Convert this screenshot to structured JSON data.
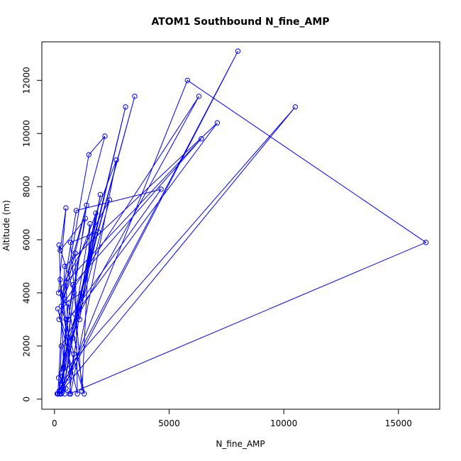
{
  "chart_data": {
    "type": "scatter",
    "title": "ATOM1 Southbound N_fine_AMP",
    "xlabel": "N_fine_AMP",
    "ylabel": "Altitude (m)",
    "xlim": [
      -550,
      16800
    ],
    "ylim": [
      -380,
      13450
    ],
    "xticks": [
      0,
      5000,
      10000,
      15000
    ],
    "yticks": [
      0,
      2000,
      4000,
      6000,
      8000,
      10000,
      12000
    ],
    "color": "#0000ff",
    "marker": "open-circle",
    "connected": true,
    "grid": false,
    "series": [
      {
        "x": [
          150,
          300,
          120,
          500,
          250,
          8000,
          200,
          600,
          5800,
          16200,
          650,
          1200,
          400,
          6300,
          300,
          220,
          10500,
          180,
          3500,
          900,
          7100,
          450,
          150,
          3100,
          300,
          800,
          6400,
          500,
          700,
          2700,
          400,
          1500,
          2200,
          350,
          950,
          4650,
          600,
          1350,
          250,
          500,
          180,
          2400,
          800,
          2000,
          1100,
          1800,
          400,
          1550,
          1200,
          700,
          1900,
          300,
          1400,
          200,
          900,
          1000,
          150,
          1300,
          600,
          300,
          850,
          200,
          400,
          500,
          250,
          700,
          850,
          300,
          450
        ],
        "y": [
          200,
          500,
          200,
          400,
          200,
          13100,
          300,
          800,
          12000,
          5900,
          200,
          4000,
          3600,
          11400,
          2000,
          200,
          11000,
          800,
          11400,
          3200,
          10400,
          5000,
          200,
          11000,
          1000,
          4300,
          9800,
          4400,
          200,
          9000,
          3800,
          9200,
          9900,
          3900,
          7100,
          7900,
          3000,
          6800,
          5600,
          7200,
          4000,
          7500,
          2300,
          7700,
          3000,
          7000,
          400,
          6600,
          300,
          5900,
          6300,
          600,
          7300,
          3000,
          5500,
          200,
          3400,
          200,
          3600,
          200,
          4000,
          5800,
          1200,
          3000,
          4500,
          1000,
          1700,
          3500,
          200
        ]
      }
    ]
  }
}
